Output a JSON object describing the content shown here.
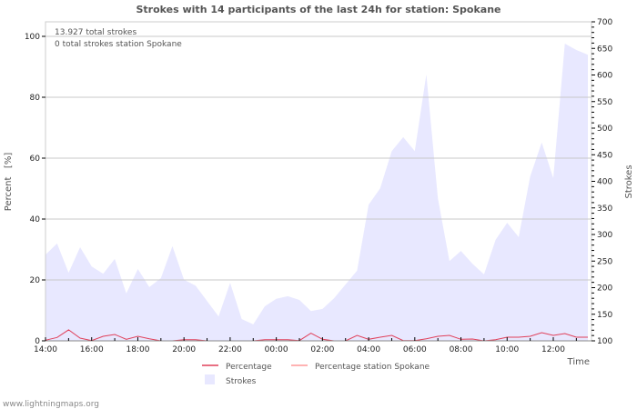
{
  "chart_data": {
    "type": "area",
    "title": "Strokes with 14 participants of the last 24h for station: Spokane",
    "annotations": [
      "13.927 total strokes",
      "0 total strokes station Spokane"
    ],
    "xlabel": "Time",
    "ylabel": "Percent   [%]",
    "ylabel_right": "Strokes",
    "x_tick_labels": [
      "14:00",
      "16:00",
      "18:00",
      "20:00",
      "22:00",
      "00:00",
      "02:00",
      "04:00",
      "06:00",
      "08:00",
      "10:00",
      "12:00"
    ],
    "x_range_hours": [
      0,
      23.7
    ],
    "x_step_hours": 0.5,
    "y_left": {
      "min": 0,
      "max": 100,
      "ticks": [
        0,
        20,
        40,
        60,
        80,
        100
      ]
    },
    "y_right": {
      "min": 100,
      "max": 700,
      "ticks": [
        100,
        150,
        200,
        250,
        300,
        350,
        400,
        450,
        500,
        550,
        600,
        650,
        700
      ]
    },
    "grid": true,
    "legend_position": "bottom",
    "legend": [
      {
        "label": "Percentage",
        "kind": "line",
        "color": "#e0405a"
      },
      {
        "label": "Percentage station Spokane",
        "kind": "line",
        "color": "#ff9a9a"
      },
      {
        "label": "Strokes",
        "kind": "area",
        "color": "#e8e8ff"
      }
    ],
    "series": [
      {
        "name": "Strokes",
        "axis": "right",
        "color": "#e8e8ff",
        "values": [
          262,
          283,
          228,
          276,
          240,
          226,
          254,
          189,
          235,
          201,
          218,
          278,
          215,
          204,
          175,
          146,
          209,
          141,
          131,
          165,
          179,
          184,
          177,
          156,
          160,
          180,
          206,
          232,
          356,
          387,
          457,
          483,
          457,
          601,
          368,
          250,
          269,
          245,
          225,
          290,
          322,
          295,
          409,
          473,
          406,
          659,
          647,
          638
        ]
      },
      {
        "name": "Percentage",
        "axis": "left",
        "color": "#e0405a",
        "values": [
          0.2,
          1.1,
          3.6,
          0.9,
          0.1,
          1.5,
          2.1,
          0.5,
          1.5,
          0.7,
          0,
          0,
          0.4,
          0.4,
          0,
          0,
          0,
          0,
          0,
          0.4,
          0.4,
          0.4,
          0.1,
          2.5,
          0.5,
          0,
          0,
          1.8,
          0.5,
          1.2,
          1.8,
          0.1,
          0.1,
          0.7,
          1.5,
          1.8,
          0.5,
          0.6,
          0,
          0.4,
          1.2,
          1.2,
          1.5,
          2.7,
          1.8,
          2.4,
          1.2,
          1.2
        ]
      },
      {
        "name": "Percentage station Spokane",
        "axis": "left",
        "color": "#ff9a9a",
        "values": [
          0,
          0,
          0,
          0,
          0,
          0,
          0,
          0,
          0,
          0,
          0,
          0,
          0,
          0,
          0,
          0,
          0,
          0,
          0,
          0,
          0,
          0,
          0,
          0,
          0,
          0,
          0,
          0,
          0,
          0,
          0,
          0,
          0,
          0,
          0,
          0,
          0,
          0,
          0,
          0,
          0,
          0,
          0,
          0,
          0,
          0,
          0,
          0
        ]
      }
    ]
  },
  "footer": "www.lightningmaps.org"
}
